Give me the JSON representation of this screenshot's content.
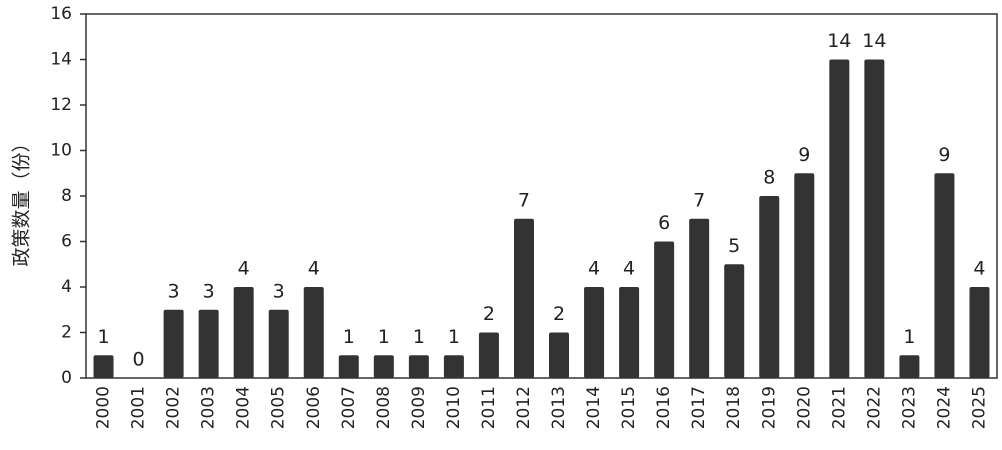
{
  "chart_data": {
    "type": "bar",
    "y_label": "政策数量（份）",
    "categories": [
      "2000",
      "2001",
      "2002",
      "2003",
      "2004",
      "2005",
      "2006",
      "2007",
      "2008",
      "2009",
      "2010",
      "2011",
      "2012",
      "2013",
      "2014",
      "2015",
      "2016",
      "2017",
      "2018",
      "2019",
      "2020",
      "2021",
      "2022",
      "2023",
      "2024",
      "2025"
    ],
    "values": [
      1,
      0,
      3,
      3,
      4,
      3,
      4,
      1,
      1,
      1,
      1,
      2,
      7,
      2,
      4,
      4,
      6,
      7,
      5,
      8,
      9,
      14,
      14,
      1,
      9,
      4
    ],
    "color": "#333333",
    "ylim": [
      0,
      16
    ],
    "yticks": [
      0,
      2,
      4,
      6,
      8,
      10,
      12,
      14,
      16
    ],
    "grid": false
  }
}
